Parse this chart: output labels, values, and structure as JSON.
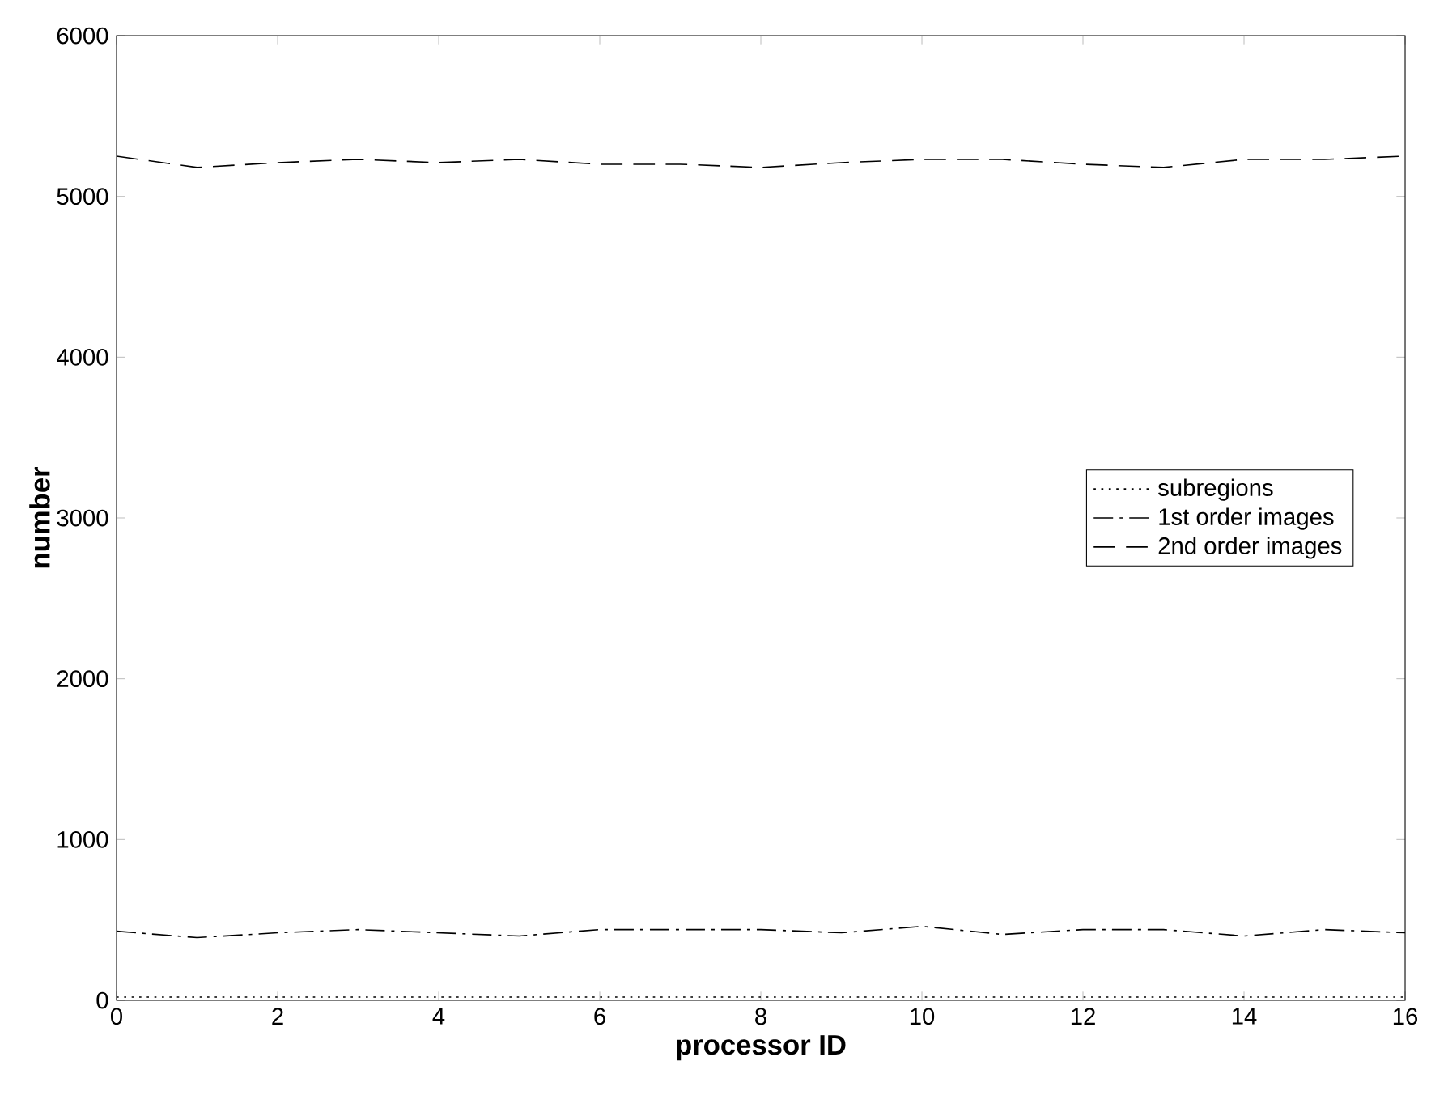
{
  "chart_data": {
    "type": "line",
    "xlabel": "processor ID",
    "ylabel": "number",
    "x": [
      0,
      1,
      2,
      3,
      4,
      5,
      6,
      7,
      8,
      9,
      10,
      11,
      12,
      13,
      14,
      15,
      16
    ],
    "series": [
      {
        "name": "subregions",
        "color": "#000000",
        "line_style": "dotted",
        "values": [
          20,
          20,
          20,
          20,
          20,
          20,
          20,
          20,
          20,
          20,
          20,
          20,
          20,
          20,
          20,
          20,
          20
        ]
      },
      {
        "name": "1st order images",
        "color": "#000000",
        "line_style": "dashdot",
        "values": [
          430,
          390,
          420,
          440,
          420,
          400,
          440,
          440,
          440,
          420,
          460,
          410,
          440,
          440,
          400,
          440,
          420
        ]
      },
      {
        "name": "2nd order images",
        "color": "#000000",
        "line_style": "dashed",
        "values": [
          5250,
          5180,
          5210,
          5230,
          5210,
          5230,
          5200,
          5200,
          5180,
          5210,
          5230,
          5230,
          5200,
          5180,
          5230,
          5230,
          5250
        ]
      }
    ],
    "xlim": [
      0,
      16
    ],
    "ylim": [
      0,
      6000
    ],
    "xticks": [
      0,
      2,
      4,
      6,
      8,
      10,
      12,
      14,
      16
    ],
    "yticks": [
      0,
      1000,
      2000,
      3000,
      4000,
      5000,
      6000
    ],
    "grid": false,
    "legend": "right"
  }
}
